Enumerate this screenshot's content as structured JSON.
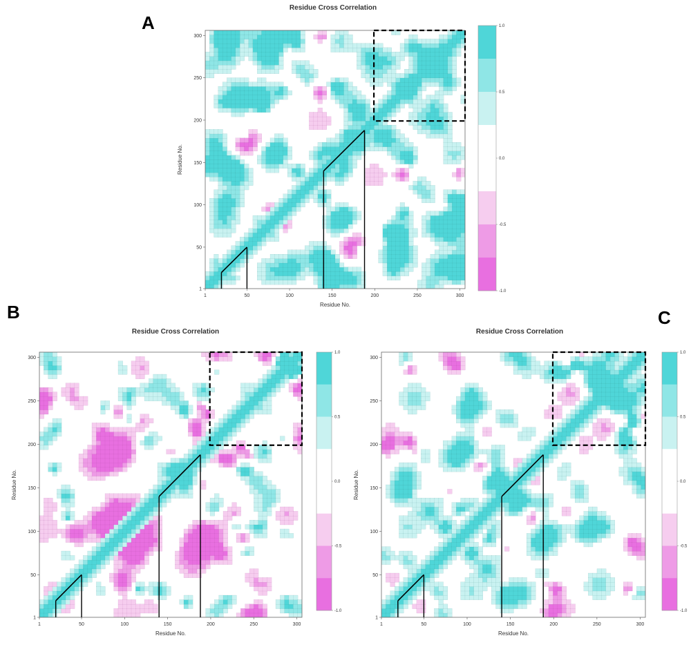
{
  "colors": {
    "pos_strong": "#4fd6d8",
    "pos_mid": "#8fe6e6",
    "pos_light": "#c9f2f1",
    "neutral": "#ffffff",
    "neg_light": "#f6cdef",
    "neg_mid": "#ee9be6",
    "neg_strong": "#e86fe0",
    "contour_line": "#2f7d7a",
    "neg_contour_line": "#9a3f8e",
    "annotation": "#000000"
  },
  "chart_data": [
    {
      "panel": "A",
      "type": "heatmap",
      "title": "Residue Cross Correlation",
      "xlabel": "Residue No.",
      "ylabel": "Residue No.",
      "xlim": [
        1,
        306
      ],
      "ylim": [
        1,
        306
      ],
      "xticks": [
        "1",
        "50",
        "100",
        "150",
        "200",
        "250",
        "300"
      ],
      "yticks": [
        "1",
        "50",
        "100",
        "150",
        "200",
        "250",
        "300"
      ],
      "colorbar": {
        "range": [
          -1.0,
          1.0
        ],
        "ticks": [
          "1.0",
          "0.5",
          "0.0",
          "-0.5",
          "-1.0"
        ]
      },
      "negative_fraction": 0.18,
      "annotations": {
        "dashed_box": [
          199,
          306,
          199,
          306
        ],
        "diagonal_segments": [
          [
            20,
            50
          ],
          [
            140,
            188
          ]
        ]
      }
    },
    {
      "panel": "B",
      "type": "heatmap",
      "title": "Residue Cross Correlation",
      "xlabel": "Residue No.",
      "ylabel": "Residue No.",
      "xlim": [
        1,
        306
      ],
      "ylim": [
        1,
        306
      ],
      "xticks": [
        "1",
        "50",
        "100",
        "150",
        "200",
        "250",
        "300"
      ],
      "yticks": [
        "1",
        "50",
        "100",
        "150",
        "200",
        "250",
        "300"
      ],
      "colorbar": {
        "range": [
          -1.0,
          1.0
        ],
        "ticks": [
          "1.0",
          "0.5",
          "0.0",
          "-0.5",
          "-1.0"
        ]
      },
      "negative_fraction": 0.5,
      "annotations": {
        "dashed_box": [
          199,
          306,
          199,
          306
        ],
        "diagonal_segments": [
          [
            20,
            50
          ],
          [
            140,
            188
          ]
        ]
      }
    },
    {
      "panel": "C",
      "type": "heatmap",
      "title": "Residue Cross Correlation",
      "xlabel": "Residue No.",
      "ylabel": "Residue No.",
      "xlim": [
        1,
        306
      ],
      "ylim": [
        1,
        306
      ],
      "xticks": [
        "1",
        "50",
        "100",
        "150",
        "200",
        "250",
        "300"
      ],
      "yticks": [
        "1",
        "50",
        "100",
        "150",
        "200",
        "250",
        "300"
      ],
      "colorbar": {
        "range": [
          -1.0,
          1.0
        ],
        "ticks": [
          "1.0",
          "0.5",
          "0.0",
          "-0.5",
          "-1.0"
        ]
      },
      "negative_fraction": 0.42,
      "annotations": {
        "dashed_box": [
          199,
          306,
          199,
          306
        ],
        "diagonal_segments": [
          [
            20,
            50
          ],
          [
            140,
            188
          ]
        ]
      }
    }
  ]
}
